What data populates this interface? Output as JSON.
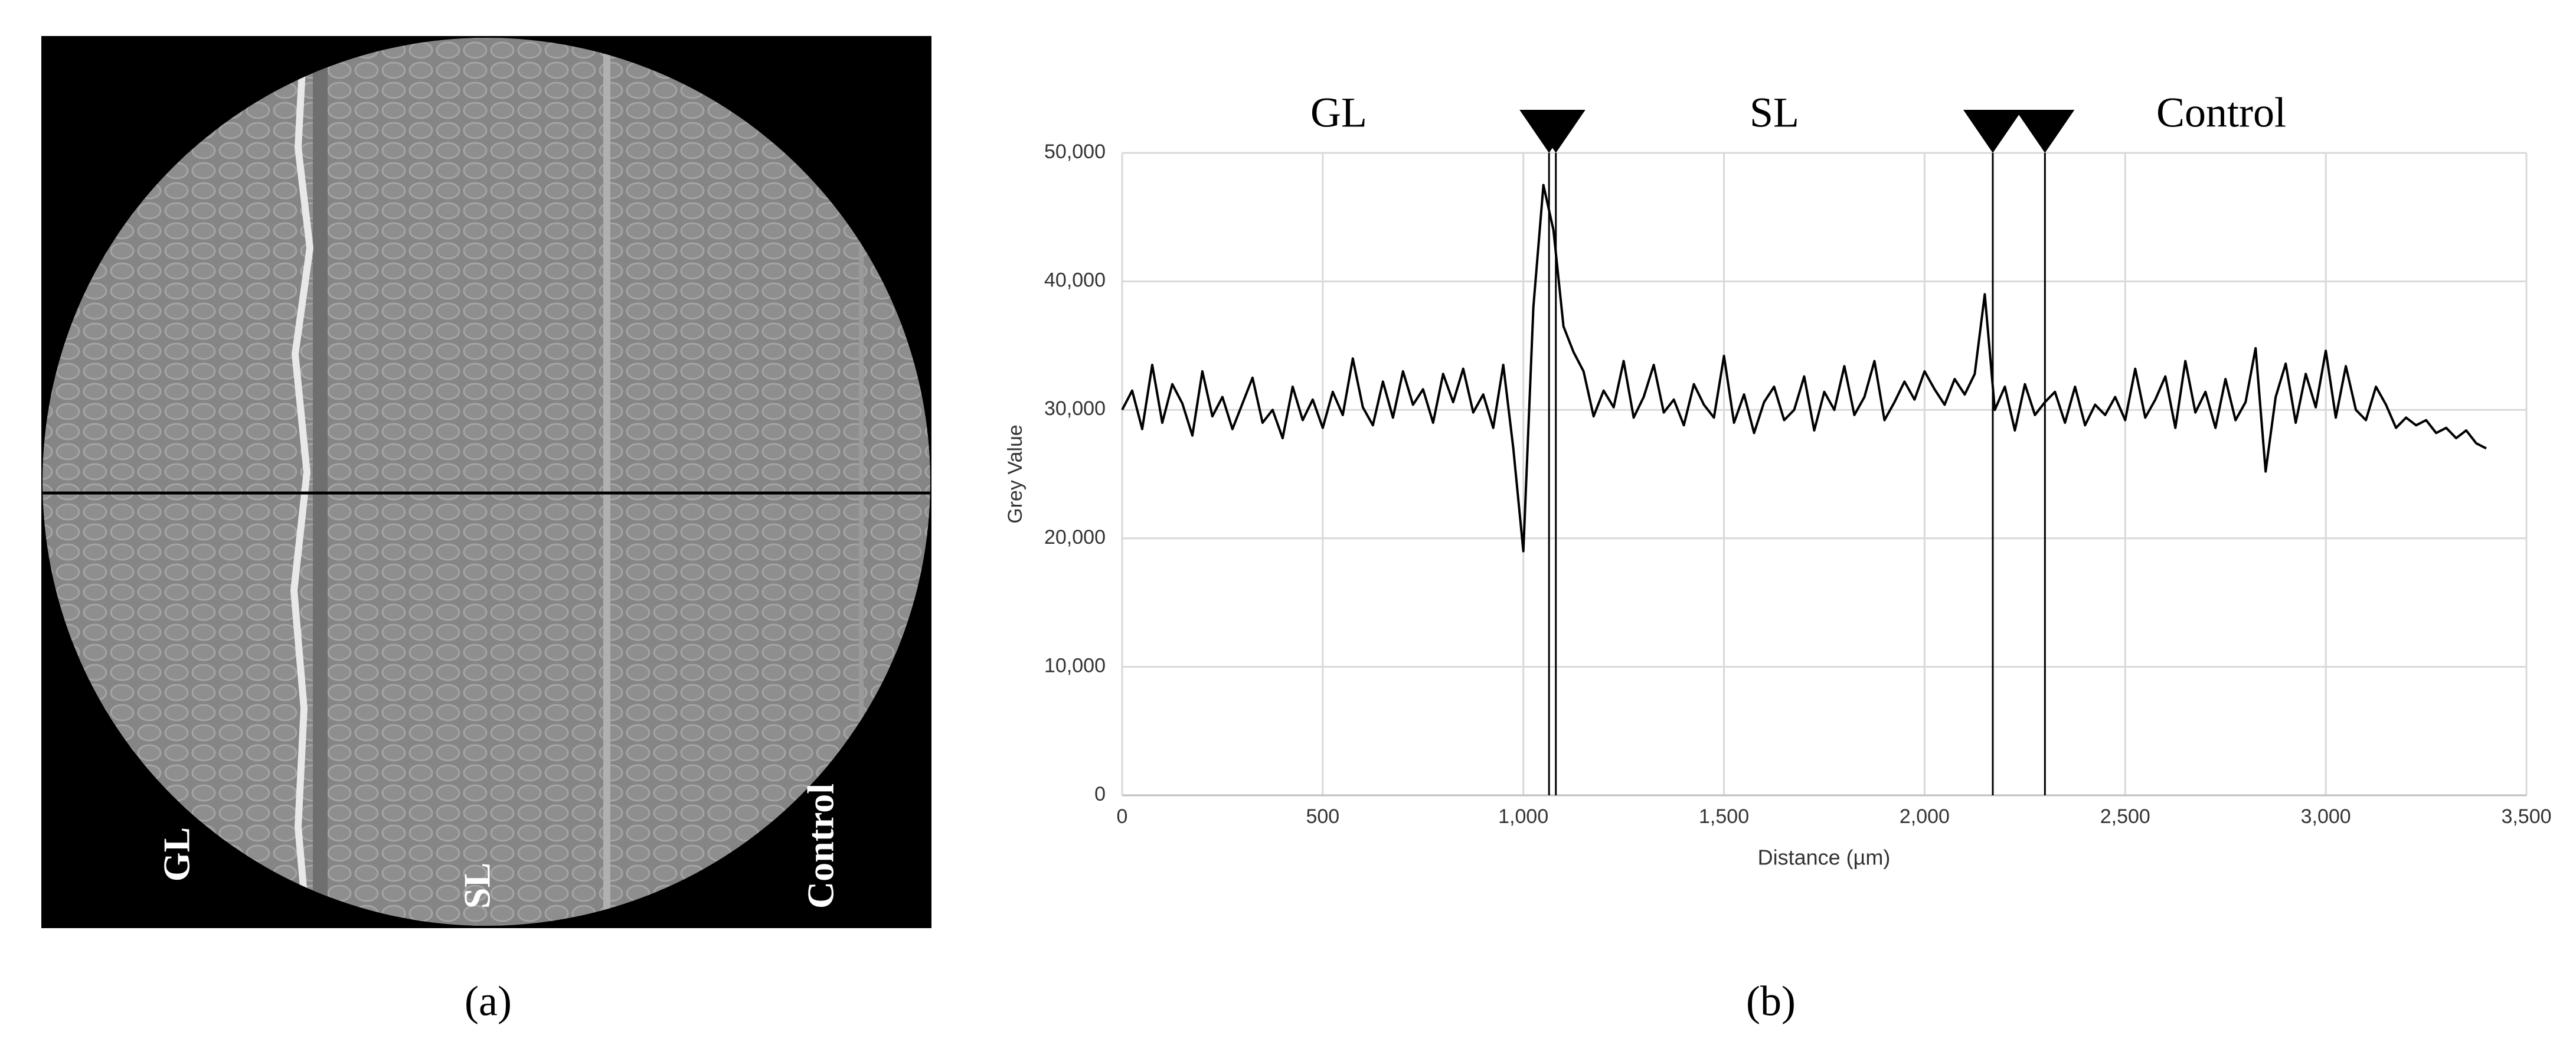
{
  "image_panel": {
    "labels": [
      "GL",
      "SL",
      "Control"
    ],
    "caption": "(a)"
  },
  "chart_data": {
    "type": "line",
    "caption": "(b)",
    "xlabel": "Distance (µm)",
    "ylabel": "Grey Value",
    "regions": [
      "GL",
      "SL",
      "Control"
    ],
    "markers": [
      1064,
      1081,
      2170,
      2300
    ],
    "xlim": [
      0,
      3500
    ],
    "xticks": [
      0,
      500,
      {
        "value": 1000,
        "label": "1,000"
      },
      {
        "value": 1500,
        "label": "1,500"
      },
      {
        "value": 2000,
        "label": "2,000"
      },
      {
        "value": 2500,
        "label": "2,500"
      },
      {
        "value": 3000,
        "label": "3,000"
      },
      {
        "value": 3500,
        "label": "3,500"
      }
    ],
    "ylim": [
      0,
      50000
    ],
    "yticks": [
      0,
      {
        "value": 10000,
        "label": "10,000"
      },
      {
        "value": 20000,
        "label": "20,000"
      },
      {
        "value": 30000,
        "label": "30,000"
      },
      {
        "value": 40000,
        "label": "40,000"
      },
      {
        "value": 50000,
        "label": "50,000"
      }
    ],
    "grid": true,
    "color": "#000000",
    "x": [
      0,
      25,
      50,
      75,
      100,
      125,
      150,
      175,
      200,
      225,
      250,
      275,
      300,
      325,
      350,
      375,
      400,
      425,
      450,
      475,
      500,
      525,
      550,
      575,
      600,
      625,
      650,
      675,
      700,
      725,
      750,
      775,
      800,
      825,
      850,
      875,
      900,
      925,
      950,
      975,
      1000,
      1025,
      1050,
      1075,
      1100,
      1125,
      1150,
      1175,
      1200,
      1225,
      1250,
      1275,
      1300,
      1325,
      1350,
      1375,
      1400,
      1425,
      1450,
      1475,
      1500,
      1525,
      1550,
      1575,
      1600,
      1625,
      1650,
      1675,
      1700,
      1725,
      1750,
      1775,
      1800,
      1825,
      1850,
      1875,
      1900,
      1925,
      1950,
      1975,
      2000,
      2025,
      2050,
      2075,
      2100,
      2125,
      2150,
      2175,
      2200,
      2225,
      2250,
      2275,
      2300,
      2325,
      2350,
      2375,
      2400,
      2425,
      2450,
      2475,
      2500,
      2525,
      2550,
      2575,
      2600,
      2625,
      2650,
      2675,
      2700,
      2725,
      2750,
      2775,
      2800,
      2825,
      2850,
      2875,
      2900,
      2925,
      2950,
      2975,
      3000,
      3025,
      3050,
      3075,
      3100,
      3125,
      3150,
      3175,
      3200,
      3225,
      3250,
      3275,
      3300,
      3325,
      3350,
      3375,
      3400
    ],
    "values": [
      30000,
      31500,
      28500,
      33500,
      29000,
      32000,
      30500,
      28000,
      33000,
      29500,
      31000,
      28500,
      30500,
      32500,
      29000,
      30000,
      27800,
      31800,
      29200,
      30800,
      28600,
      31400,
      29600,
      34000,
      30200,
      28800,
      32200,
      29400,
      33000,
      30400,
      31600,
      29000,
      32800,
      30600,
      33200,
      29800,
      31200,
      28600,
      33500,
      27000,
      19000,
      38000,
      47500,
      44000,
      36500,
      34500,
      33000,
      29500,
      31500,
      30200,
      33800,
      29400,
      31000,
      33500,
      29800,
      30800,
      28800,
      32000,
      30400,
      29400,
      34200,
      29000,
      31200,
      28200,
      30600,
      31800,
      29200,
      30000,
      32600,
      28400,
      31400,
      30000,
      33400,
      29600,
      31000,
      33800,
      29200,
      30600,
      32200,
      30800,
      33000,
      31600,
      30400,
      32400,
      31200,
      32800,
      39000,
      30000,
      31800,
      28400,
      32000,
      29600,
      30600,
      31400,
      29000,
      31800,
      28800,
      30400,
      29600,
      31000,
      29200,
      33200,
      29400,
      30800,
      32600,
      28600,
      33800,
      29800,
      31400,
      28600,
      32400,
      29200,
      30600,
      34800,
      25200,
      31000,
      33600,
      29000,
      32800,
      30200,
      34600,
      29400,
      33400,
      30000,
      29200,
      31800,
      30400,
      28600,
      29400,
      28800,
      29200,
      28200,
      28600,
      27800,
      28400,
      27400,
      27000
    ]
  }
}
